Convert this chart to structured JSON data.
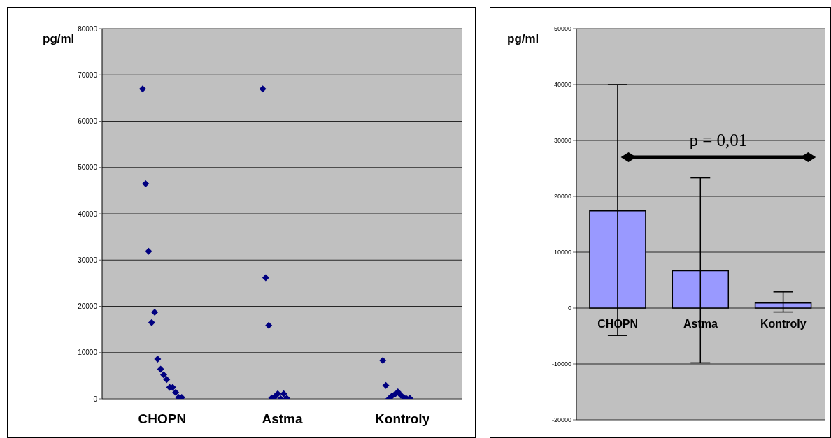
{
  "chart_data": [
    {
      "type": "scatter",
      "ylabel": "pg/ml",
      "categories": [
        "CHOPN",
        "Astma",
        "Kontroly"
      ],
      "color": "#000080",
      "marker": "diamond",
      "series": [
        {
          "values": [
            67000,
            67000,
            8300
          ]
        },
        {
          "values": [
            46500,
            26200,
            2900
          ]
        },
        {
          "values": [
            31900,
            15900,
            0
          ]
        },
        {
          "values": [
            16500,
            200,
            600
          ]
        },
        {
          "values": [
            18700,
            400,
            1000
          ]
        },
        {
          "values": [
            8600,
            1100,
            1500
          ]
        },
        {
          "values": [
            6400,
            0,
            800
          ]
        },
        {
          "values": [
            5200,
            1100,
            300
          ]
        },
        {
          "values": [
            4200,
            100,
            0
          ]
        },
        {
          "values": [
            2500,
            null,
            100
          ]
        },
        {
          "values": [
            2500,
            null,
            null
          ]
        },
        {
          "values": [
            1400,
            null,
            null
          ]
        },
        {
          "values": [
            300,
            null,
            null
          ]
        },
        {
          "values": [
            300,
            null,
            null
          ]
        }
      ],
      "ylim": [
        0,
        80000
      ],
      "yticks": [
        0,
        10000,
        20000,
        30000,
        40000,
        50000,
        60000,
        70000,
        80000
      ],
      "grid": "y"
    },
    {
      "type": "bar",
      "ylabel": "pg/ml",
      "categories": [
        "CHOPN",
        "Astma",
        "Kontroly"
      ],
      "values": [
        17400,
        6700,
        900
      ],
      "errors": [
        [
          -4900,
          40000
        ],
        [
          -9800,
          23300
        ],
        [
          -700,
          2900
        ]
      ],
      "color": "#9999ff",
      "ylim": [
        -20000,
        50000
      ],
      "yticks": [
        -20000,
        -10000,
        0,
        10000,
        20000,
        30000,
        40000,
        50000
      ],
      "grid": "y",
      "annotations": [
        "p = 0,01"
      ]
    }
  ]
}
